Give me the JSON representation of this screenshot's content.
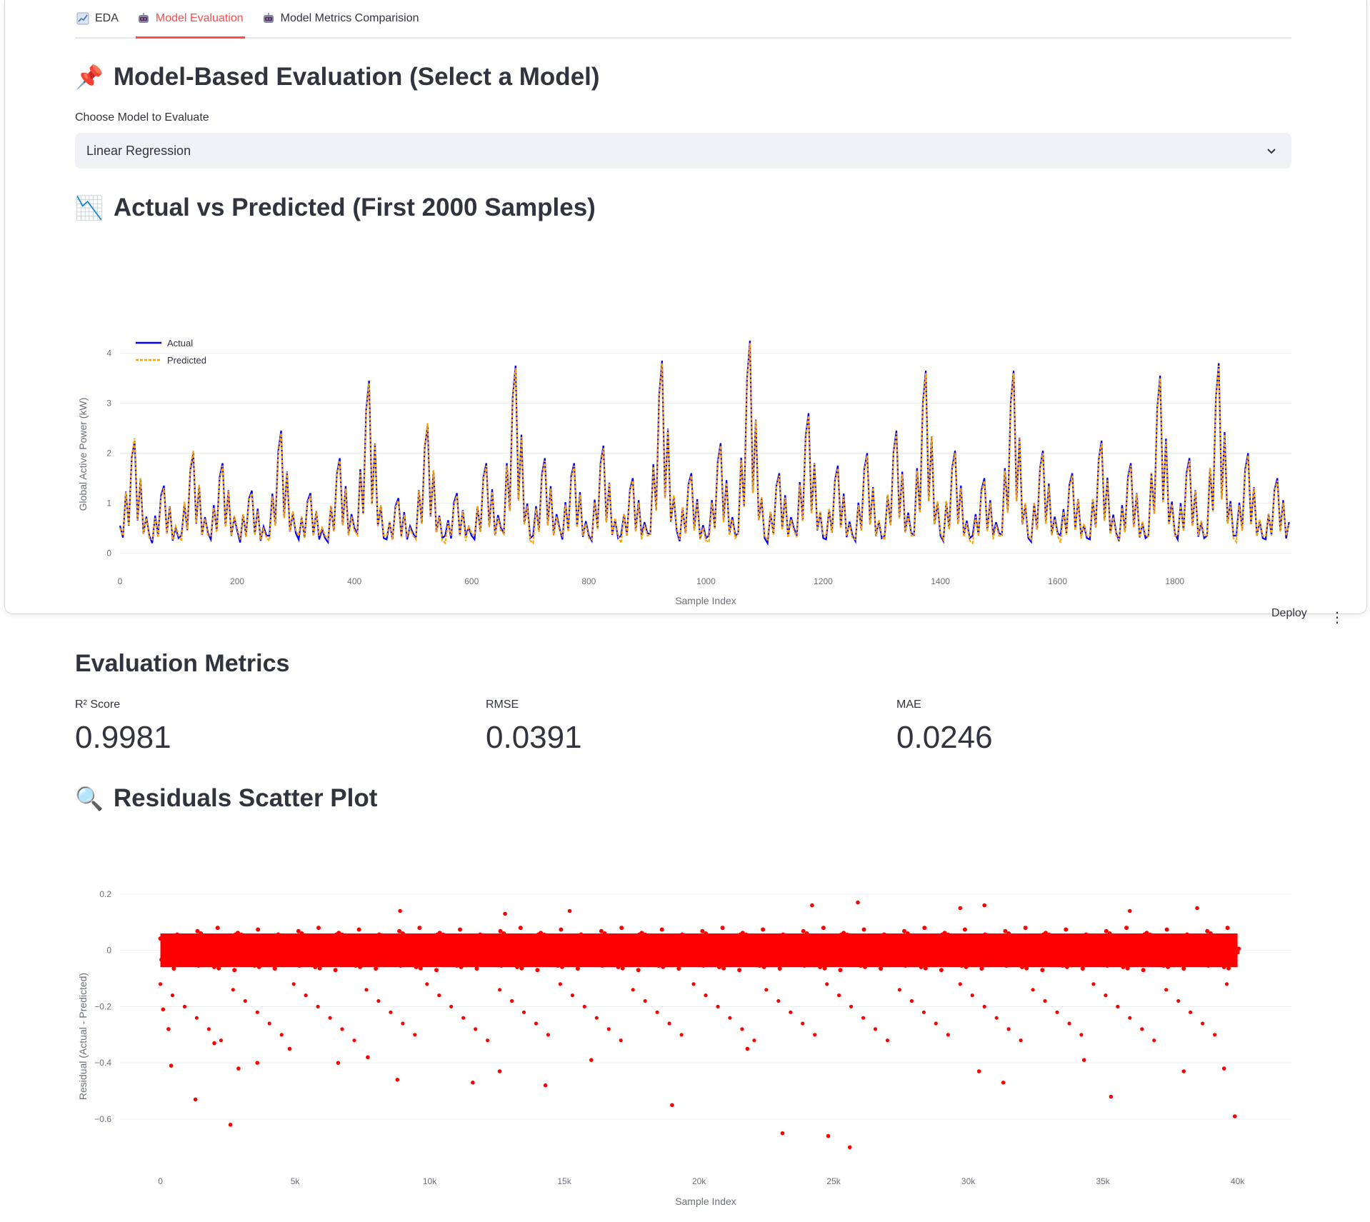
{
  "tabs": [
    {
      "label": "EDA",
      "icon": "chart-increasing-icon",
      "active": false
    },
    {
      "label": "Model Evaluation",
      "icon": "robot-icon",
      "active": true
    },
    {
      "label": "Model Metrics Comparision",
      "icon": "robot-icon",
      "active": false
    }
  ],
  "model_section": {
    "emoji": "📌",
    "title": "Model-Based Evaluation (Select a Model)",
    "select_label": "Choose Model to Evaluate",
    "selected_model": "Linear Regression"
  },
  "line_section": {
    "emoji": "📉",
    "title": "Actual vs Predicted (First 2000 Samples)"
  },
  "header_actions": {
    "deploy_label": "Deploy",
    "menu_label": "⋮"
  },
  "metrics_section": {
    "title": "Evaluation Metrics",
    "items": [
      {
        "label": "R² Score",
        "value": "0.9981"
      },
      {
        "label": "RMSE",
        "value": "0.0391"
      },
      {
        "label": "MAE",
        "value": "0.0246"
      }
    ]
  },
  "residual_section": {
    "emoji": "🔍",
    "title": "Residuals Scatter Plot"
  },
  "colors": {
    "accent": "#ff4b4b",
    "actual": "#0000ff",
    "predicted": "#ffa500",
    "residual": "#ff0000"
  },
  "chart_data": [
    {
      "type": "line",
      "xlabel": "Sample Index",
      "ylabel": "Global Active Power (kW)",
      "xlim": [
        0,
        1999
      ],
      "ylim": [
        -0.05,
        4.35
      ],
      "xticks": [
        0,
        200,
        400,
        600,
        800,
        1000,
        1200,
        1400,
        1600,
        1800
      ],
      "xtick_labels": [
        "0",
        "200",
        "400",
        "600",
        "800",
        "1000",
        "1200",
        "1400",
        "1600",
        "1800"
      ],
      "yticks": [
        0,
        1,
        2,
        3,
        4
      ],
      "ytick_labels": [
        "0",
        "1",
        "2",
        "3",
        "4"
      ],
      "legend_position": "top-left",
      "grid": true,
      "series": [
        {
          "name": "Actual",
          "style": "solid"
        },
        {
          "name": "Predicted",
          "style": "dashed"
        }
      ],
      "x_step": 25,
      "actual_values": [
        0.55,
        2.25,
        0.35,
        1.35,
        0.3,
        2.0,
        0.4,
        1.8,
        0.45,
        1.25,
        0.35,
        2.45,
        0.4,
        1.2,
        0.3,
        1.9,
        0.5,
        3.45,
        0.3,
        1.1,
        0.4,
        2.55,
        0.3,
        1.2,
        0.35,
        1.8,
        0.5,
        3.75,
        0.3,
        1.9,
        0.5,
        1.8,
        0.35,
        2.15,
        0.3,
        1.5,
        0.4,
        3.85,
        0.45,
        1.6,
        0.3,
        2.2,
        0.35,
        4.25,
        0.3,
        1.6,
        0.5,
        2.8,
        0.3,
        1.75,
        0.35,
        2.0,
        0.3,
        2.45,
        0.4,
        3.65,
        0.35,
        2.05,
        0.3,
        1.5,
        0.4,
        3.65,
        0.3,
        2.05,
        0.4,
        1.6,
        0.3,
        2.25,
        0.4,
        1.8,
        0.3,
        3.55,
        0.4,
        1.9,
        0.3,
        3.8,
        0.35,
        2.0,
        0.3,
        1.5,
        0.4
      ],
      "predicted_values": [
        0.5,
        2.3,
        0.3,
        1.3,
        0.35,
        2.05,
        0.35,
        1.75,
        0.5,
        1.2,
        0.3,
        2.4,
        0.45,
        1.15,
        0.35,
        1.85,
        0.45,
        3.4,
        0.35,
        1.05,
        0.35,
        2.6,
        0.25,
        1.15,
        0.4,
        1.75,
        0.45,
        3.7,
        0.25,
        1.85,
        0.45,
        1.75,
        0.3,
        2.1,
        0.35,
        1.45,
        0.35,
        3.8,
        0.5,
        1.55,
        0.25,
        2.15,
        0.3,
        4.2,
        0.35,
        1.55,
        0.45,
        2.75,
        0.35,
        1.7,
        0.3,
        1.95,
        0.35,
        2.4,
        0.35,
        3.6,
        0.4,
        2.0,
        0.25,
        1.45,
        0.35,
        3.6,
        0.35,
        2.0,
        0.35,
        1.55,
        0.35,
        2.2,
        0.35,
        1.75,
        0.35,
        3.5,
        0.35,
        1.85,
        0.35,
        3.75,
        0.3,
        1.95,
        0.35,
        1.45,
        0.35
      ]
    },
    {
      "type": "scatter",
      "xlabel": "Sample Index",
      "ylabel": "Residual (Actual - Predicted)",
      "xlim": [
        -1500,
        42000
      ],
      "ylim": [
        -0.76,
        0.23
      ],
      "xticks": [
        0,
        5000,
        10000,
        15000,
        20000,
        25000,
        30000,
        35000,
        40000
      ],
      "xtick_labels": [
        "0",
        "5k",
        "10k",
        "15k",
        "20k",
        "25k",
        "30k",
        "35k",
        "40k"
      ],
      "yticks": [
        0.2,
        0,
        -0.2,
        -0.4,
        -0.6
      ],
      "ytick_labels": [
        "0.2",
        "0",
        "−0.2",
        "−0.4",
        "−0.6"
      ],
      "grid": true,
      "x_step": 1000,
      "band_points_per_bin": 6,
      "band_residuals": [
        0.06,
        0.02,
        -0.01,
        -0.04,
        -0.07,
        0.08
      ],
      "notable_points": [
        [
          100,
          -0.21
        ],
        [
          300,
          -0.28
        ],
        [
          400,
          -0.41
        ],
        [
          1300,
          -0.53
        ],
        [
          2000,
          -0.33
        ],
        [
          2600,
          -0.62
        ],
        [
          2900,
          -0.42
        ],
        [
          3600,
          -0.4
        ],
        [
          4800,
          -0.35
        ],
        [
          6600,
          -0.4
        ],
        [
          7700,
          -0.38
        ],
        [
          8800,
          -0.46
        ],
        [
          11600,
          -0.47
        ],
        [
          12600,
          -0.43
        ],
        [
          14300,
          -0.48
        ],
        [
          16000,
          -0.39
        ],
        [
          19000,
          -0.55
        ],
        [
          21800,
          -0.35
        ],
        [
          23100,
          -0.65
        ],
        [
          24200,
          0.16
        ],
        [
          24800,
          -0.66
        ],
        [
          25600,
          -0.7
        ],
        [
          25900,
          0.17
        ],
        [
          30400,
          -0.43
        ],
        [
          30600,
          0.16
        ],
        [
          31300,
          -0.47
        ],
        [
          34300,
          -0.39
        ],
        [
          35300,
          -0.52
        ],
        [
          36000,
          0.14
        ],
        [
          38000,
          -0.43
        ],
        [
          39500,
          -0.42
        ],
        [
          39900,
          -0.59
        ],
        [
          8900,
          0.14
        ],
        [
          12800,
          0.13
        ],
        [
          15200,
          0.14
        ],
        [
          29700,
          0.15
        ],
        [
          38500,
          0.15
        ]
      ]
    }
  ]
}
